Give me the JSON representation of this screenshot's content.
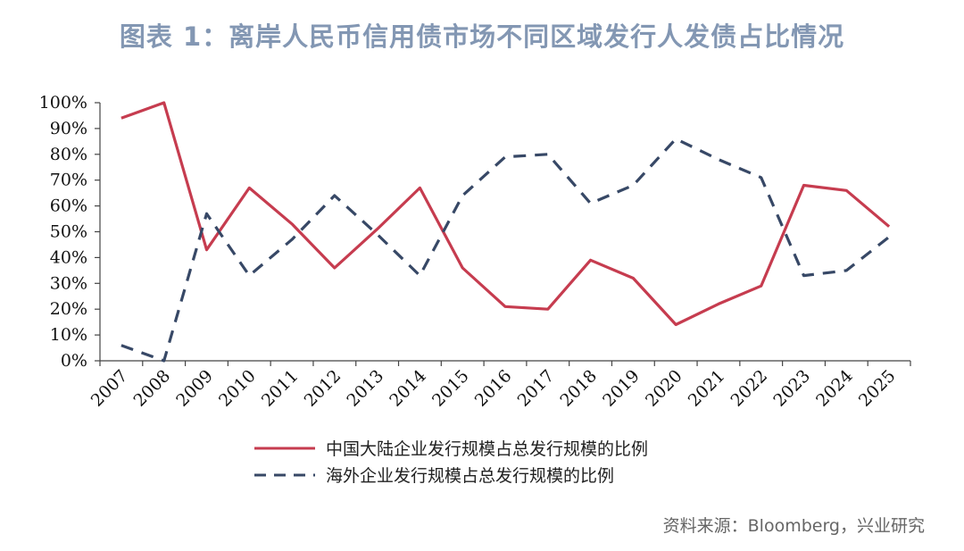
{
  "title": "图表 1：离岸人民币信用债市场不同区域发行人发债占比情况",
  "source": "资料来源：Bloomberg，兴业研究",
  "colors": {
    "series1": "#c63c4f",
    "series2": "#374866",
    "title": "#8397b3"
  },
  "chart_data": {
    "type": "line",
    "title": "",
    "xlabel": "",
    "ylabel": "",
    "ylim": [
      0,
      100
    ],
    "y_ticks": [
      "0%",
      "10%",
      "20%",
      "30%",
      "40%",
      "50%",
      "60%",
      "70%",
      "80%",
      "90%",
      "100%"
    ],
    "categories": [
      "2007",
      "2008",
      "2009",
      "2010",
      "2011",
      "2012",
      "2013",
      "2014",
      "2015",
      "2016",
      "2017",
      "2018",
      "2019",
      "2020",
      "2021",
      "2022",
      "2023",
      "2024",
      "2025"
    ],
    "legend_position": "bottom",
    "grid": false,
    "series": [
      {
        "name": "中国大陆企业发行规模占总发行规模的比例",
        "style": "solid",
        "color": "#c63c4f",
        "values": [
          94,
          100,
          43,
          67,
          53,
          36,
          51,
          67,
          36,
          21,
          20,
          39,
          32,
          14,
          22,
          29,
          68,
          66,
          52
        ]
      },
      {
        "name": "海外企业发行规模占总发行规模的比例",
        "style": "dashed",
        "color": "#374866",
        "values": [
          6,
          0,
          57,
          33,
          47,
          64,
          49,
          33,
          64,
          79,
          80,
          61,
          68,
          86,
          78,
          71,
          33,
          35,
          48
        ]
      }
    ]
  }
}
